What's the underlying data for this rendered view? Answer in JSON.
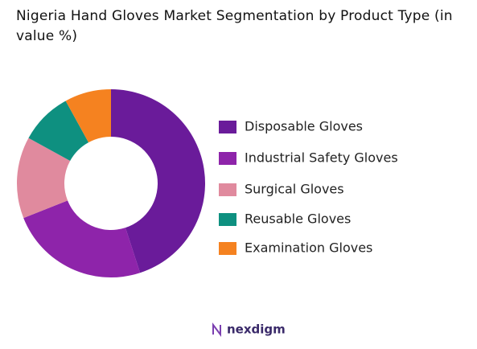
{
  "chart_data": {
    "type": "donut",
    "title": "Nigeria Hand Gloves Market Segmentation by Product Type (in value %)",
    "categories": [
      "Disposable Gloves",
      "Industrial Safety Gloves",
      "Surgical Gloves",
      "Reusable Gloves",
      "Examination Gloves"
    ],
    "values": [
      45,
      24,
      14,
      9,
      8
    ],
    "colors": [
      "#6a1b9a",
      "#8e24aa",
      "#e08a9e",
      "#0e9080",
      "#f58220"
    ],
    "legend": "right"
  },
  "logo": "nexdigm"
}
